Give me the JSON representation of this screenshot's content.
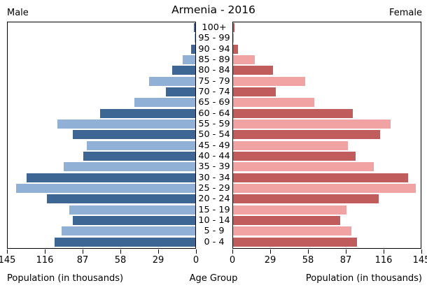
{
  "chart_data": {
    "type": "bar",
    "variant": "population-pyramid",
    "title": "Armenia - 2016",
    "age_groups": [
      "100+",
      "95 - 99",
      "90 - 94",
      "85 - 89",
      "80 - 84",
      "75 - 79",
      "70 - 74",
      "65 - 69",
      "60 - 64",
      "55 - 59",
      "50 - 54",
      "45 - 49",
      "40 - 44",
      "35 - 39",
      "30 - 34",
      "25 - 29",
      "20 - 24",
      "15 - 19",
      "10 - 14",
      "5 - 9",
      "0 - 4"
    ],
    "series": [
      {
        "name": "Male",
        "side": "left",
        "values": [
          1,
          0.5,
          3,
          10,
          18,
          36,
          23,
          47,
          74,
          107,
          95,
          84,
          87,
          102,
          131,
          139,
          115,
          98,
          95,
          104,
          109
        ]
      },
      {
        "name": "Female",
        "side": "right",
        "values": [
          1,
          0.5,
          4,
          17,
          31,
          56,
          33,
          63,
          93,
          122,
          114,
          89,
          95,
          109,
          136,
          142,
          113,
          88,
          83,
          92,
          96
        ]
      }
    ],
    "axis": {
      "max": 145,
      "tick_values": [
        0,
        29,
        58,
        87,
        116,
        145
      ],
      "x_label_left": "Population (in thousands)",
      "center_label": "Age Group",
      "x_label_right": "Population (in thousands)",
      "grid": false
    },
    "colors": {
      "male_dark": "#3d6695",
      "male_light": "#90b1d5",
      "female_dark": "#c05c5c",
      "female_light": "#f1a3a3",
      "frame": "#000000"
    }
  }
}
